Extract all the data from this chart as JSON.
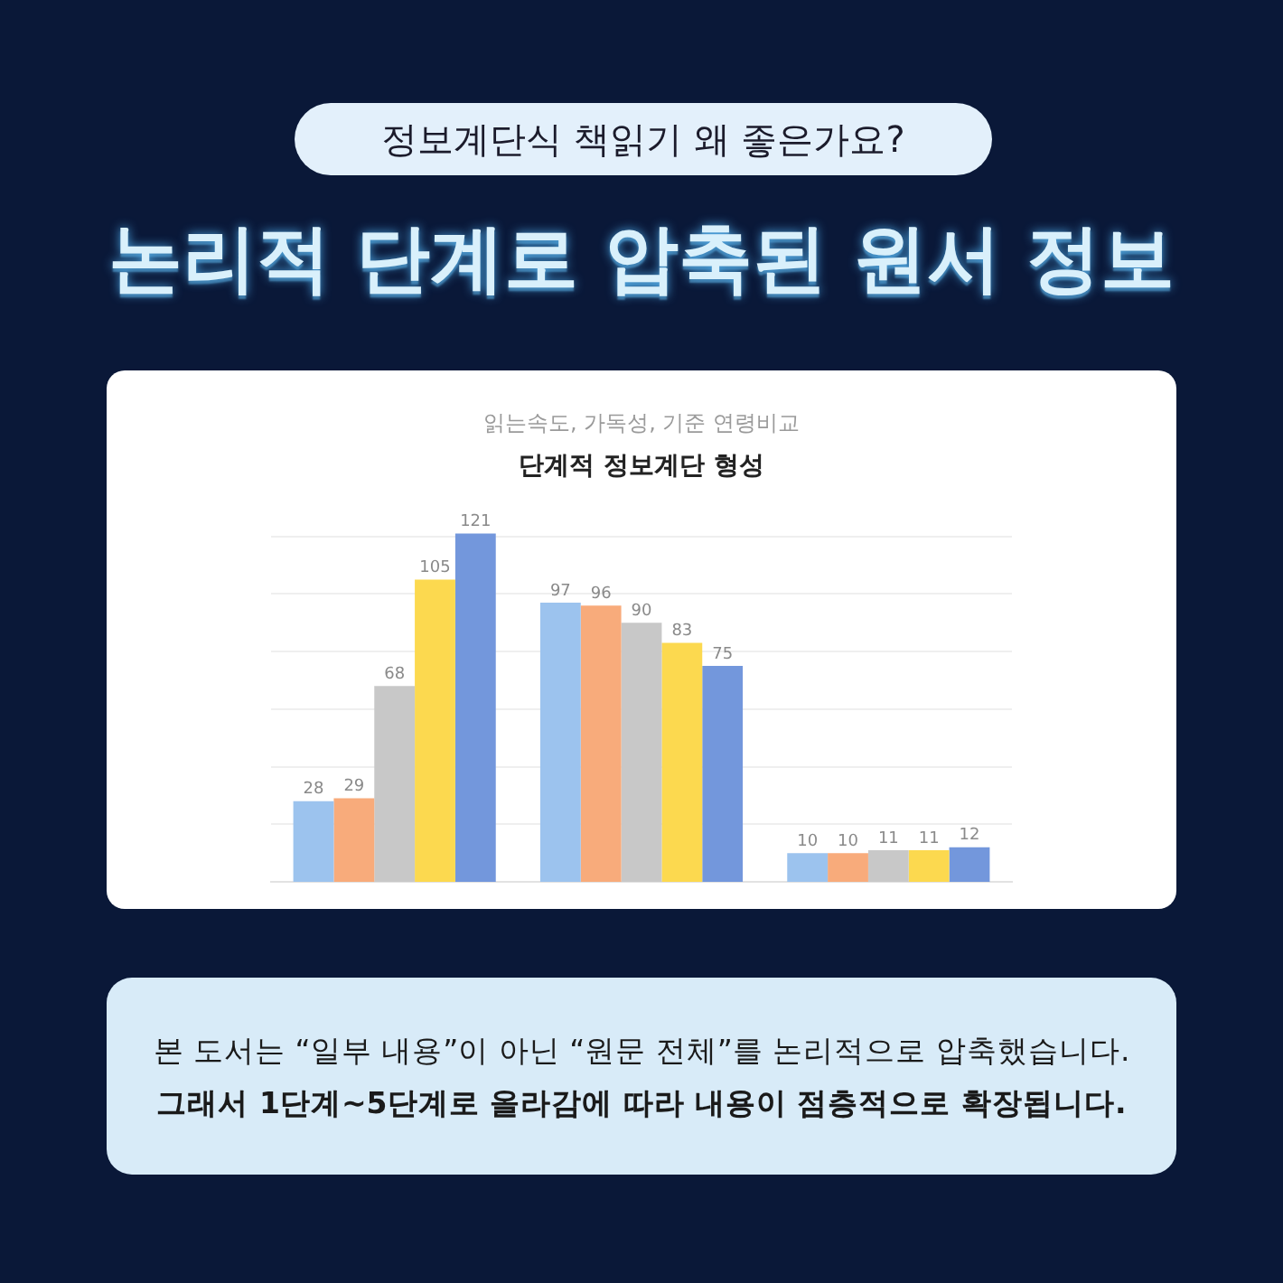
{
  "chart_data": {
    "type": "bar",
    "title": "단계적 정보계단 형성",
    "subtitle": "읽는속도, 가독성, 기준 연령비교",
    "categories": [
      null,
      null,
      null
    ],
    "series": [
      {
        "color": "#9cc3ee",
        "values": [
          28,
          97,
          10
        ]
      },
      {
        "color": "#f8ab7b",
        "values": [
          29,
          96,
          10
        ]
      },
      {
        "color": "#c8c8c8",
        "values": [
          68,
          90,
          11
        ]
      },
      {
        "color": "#fcd94f",
        "values": [
          105,
          83,
          11
        ]
      },
      {
        "color": "#7397dc",
        "values": [
          121,
          75,
          12
        ]
      }
    ],
    "yticks": [
      {
        "value": 20,
        "label": null
      },
      {
        "value": 40,
        "label": null
      },
      {
        "value": 60,
        "label": null
      },
      {
        "value": 80,
        "label": null
      },
      {
        "value": 100,
        "label": null
      },
      {
        "value": 120,
        "label": null
      }
    ],
    "grid": "y",
    "tick_labels": false,
    "data_labels": true,
    "annotations": [
      "정보계단식 책읽기 왜 좋은가요?",
      "논리적 단계로 압축된 원서 정보",
      "본 도서는 “일부 내용”이 아닌 “원문 전체”를 논리적으로 압축했습니다.",
      "그래서 1단계~5단계로 올라감에 따라 내용이 점층적으로 확장됩니다."
    ]
  }
}
